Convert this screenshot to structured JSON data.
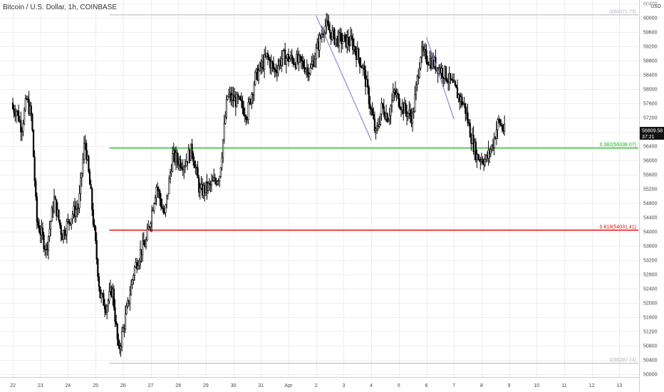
{
  "header": {
    "title": "Bitcoin / U.S. Dollar, 1h, COINBASE"
  },
  "chart_data": {
    "type": "candlestick",
    "currency": "USD",
    "price_axis": {
      "ticks": [
        50000,
        50400,
        50800,
        51200,
        51600,
        52000,
        52400,
        52800,
        53200,
        53600,
        54000,
        54400,
        54800,
        55200,
        55600,
        56000,
        56400,
        56800,
        57200,
        57600,
        58000,
        58400,
        58800,
        59200,
        59600,
        60000,
        60400
      ],
      "range": [
        49900,
        60500
      ],
      "unit_label": "USD"
    },
    "time_axis": {
      "labels": [
        "22",
        "23",
        "24",
        "25",
        "26",
        "27",
        "28",
        "29",
        "30",
        "31",
        "Apr",
        "2",
        "3",
        "4",
        "5",
        "6",
        "7",
        "8",
        "9",
        "10",
        "11",
        "12",
        "13"
      ]
    },
    "last_price": {
      "price": 56809.58,
      "label": "56809.58",
      "countdown": "37:21"
    },
    "fib_levels": [
      {
        "ratio": 0,
        "price": 60071.73,
        "label": "0(60071.73)",
        "color": "#b2b5be"
      },
      {
        "ratio": 0.382,
        "price": 56338.07,
        "label": "0.382(56338.07)",
        "color": "#00c000"
      },
      {
        "ratio": 0.618,
        "price": 54031.41,
        "label": "0.618(54031.41)",
        "color": "#e00000"
      },
      {
        "ratio": 1,
        "price": 50297.74,
        "label": "1(50297.74)",
        "color": "#b2b5be"
      }
    ],
    "trend_lines": [
      {
        "from": {
          "date": "Apr 2",
          "price": 60050
        },
        "to": {
          "date": "Apr 4",
          "price": 56550
        }
      },
      {
        "from": {
          "date": "Apr 6",
          "price": 59450
        },
        "to": {
          "date": "Apr 7",
          "price": 57150
        }
      }
    ],
    "price_path": [
      {
        "date": "Mar 21",
        "price": 57600
      },
      {
        "date": "Mar 22",
        "price": 57400
      },
      {
        "date": "Mar 22",
        "price": 56900
      },
      {
        "date": "Mar 22",
        "price": 57700
      },
      {
        "date": "Mar 22",
        "price": 57200
      },
      {
        "date": "Mar 22",
        "price": 54300
      },
      {
        "date": "Mar 23",
        "price": 53500
      },
      {
        "date": "Mar 23",
        "price": 54900
      },
      {
        "date": "Mar 23",
        "price": 53900
      },
      {
        "date": "Mar 24",
        "price": 54500
      },
      {
        "date": "Mar 24",
        "price": 54700
      },
      {
        "date": "Mar 24",
        "price": 56600
      },
      {
        "date": "Mar 24",
        "price": 55000
      },
      {
        "date": "Mar 25",
        "price": 52200
      },
      {
        "date": "Mar 25",
        "price": 51900
      },
      {
        "date": "Mar 25",
        "price": 52400
      },
      {
        "date": "Mar 25",
        "price": 50600
      },
      {
        "date": "Mar 26",
        "price": 51900
      },
      {
        "date": "Mar 26",
        "price": 52900
      },
      {
        "date": "Mar 26",
        "price": 53400
      },
      {
        "date": "Mar 26",
        "price": 53700
      },
      {
        "date": "Mar 27",
        "price": 55300
      },
      {
        "date": "Mar 27",
        "price": 54400
      },
      {
        "date": "Mar 27",
        "price": 56100
      },
      {
        "date": "Mar 28",
        "price": 55900
      },
      {
        "date": "Mar 28",
        "price": 56300
      },
      {
        "date": "Mar 28",
        "price": 55100
      },
      {
        "date": "Mar 29",
        "price": 55300
      },
      {
        "date": "Mar 29",
        "price": 55600
      },
      {
        "date": "Mar 29",
        "price": 57800
      },
      {
        "date": "Mar 30",
        "price": 57600
      },
      {
        "date": "Mar 30",
        "price": 57300
      },
      {
        "date": "Mar 30",
        "price": 58300
      },
      {
        "date": "Mar 31",
        "price": 58900
      },
      {
        "date": "Mar 31",
        "price": 58500
      },
      {
        "date": "Mar 31",
        "price": 58900
      },
      {
        "date": "Apr 1",
        "price": 58800
      },
      {
        "date": "Apr 1",
        "price": 58700
      },
      {
        "date": "Apr 1",
        "price": 58500
      },
      {
        "date": "Apr 2",
        "price": 59800
      },
      {
        "date": "Apr 2",
        "price": 59400
      },
      {
        "date": "Apr 3",
        "price": 59300
      },
      {
        "date": "Apr 3",
        "price": 58600
      },
      {
        "date": "Apr 4",
        "price": 56700
      },
      {
        "date": "Apr 4",
        "price": 57500
      },
      {
        "date": "Apr 4",
        "price": 57200
      },
      {
        "date": "Apr 4",
        "price": 57900
      },
      {
        "date": "Apr 5",
        "price": 57400
      },
      {
        "date": "Apr 5",
        "price": 57200
      },
      {
        "date": "Apr 5",
        "price": 59000
      },
      {
        "date": "Apr 6",
        "price": 58700
      },
      {
        "date": "Apr 6",
        "price": 58400
      },
      {
        "date": "Apr 7",
        "price": 57800
      },
      {
        "date": "Apr 7",
        "price": 57500
      },
      {
        "date": "Apr 7",
        "price": 56700
      },
      {
        "date": "Apr 7",
        "price": 56100
      },
      {
        "date": "Apr 8",
        "price": 56000
      },
      {
        "date": "Apr 8",
        "price": 56400
      },
      {
        "date": "Apr 8",
        "price": 57100
      },
      {
        "date": "Apr 8",
        "price": 56800
      }
    ],
    "colors": {
      "candle_up": "#ffffff",
      "candle_down": "#000000",
      "candle_outline": "#000000",
      "trend_line": "#8a8ad8",
      "grid": "#eeeeee",
      "axis_text": "#444444",
      "last_price_bg": "#111111",
      "last_price_text": "#ffffff"
    },
    "grid": true,
    "legend": "none"
  }
}
